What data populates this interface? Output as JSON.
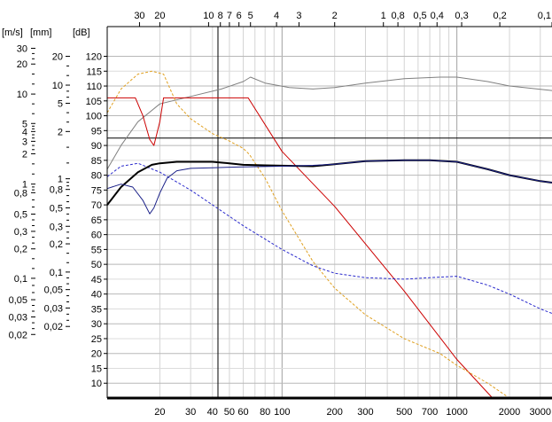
{
  "chart_data": {
    "type": "line",
    "title": "",
    "units": {
      "velocity": "[m/s]",
      "excursion": "[mm]",
      "level": "[dB]"
    },
    "x_scale": "log",
    "xlim": [
      10,
      3500
    ],
    "ylim": [
      5,
      130
    ],
    "grid": true,
    "legend": "none",
    "x_ticks": [
      20,
      30,
      40,
      50,
      60,
      80,
      100,
      200,
      300,
      500,
      700,
      1000,
      2000,
      3000
    ],
    "x_tick_labels": [
      "20",
      "30",
      "40",
      "50",
      "60",
      "80",
      "100",
      "200",
      "300",
      "500",
      "700",
      "1000",
      "2000",
      "3000"
    ],
    "top_ticks": [
      {
        "x": 15.3,
        "label": "30"
      },
      {
        "x": 20.0,
        "label": "20"
      },
      {
        "x": 38.0,
        "label": "10"
      },
      {
        "x": 44.4,
        "label": "8"
      },
      {
        "x": 50.0,
        "label": "7"
      },
      {
        "x": 56.7,
        "label": "6"
      },
      {
        "x": 66.0,
        "label": "5"
      },
      {
        "x": 93.0,
        "label": "4"
      },
      {
        "x": 125.0,
        "label": "3"
      },
      {
        "x": 200.0,
        "label": "2"
      },
      {
        "x": 380.0,
        "label": "1"
      },
      {
        "x": 460.0,
        "label": "0,8"
      },
      {
        "x": 615.0,
        "label": "0,5"
      },
      {
        "x": 770.0,
        "label": "0,4"
      },
      {
        "x": 1065.0,
        "label": "0,3"
      },
      {
        "x": 1760.0,
        "label": "0,2"
      },
      {
        "x": 3500.0,
        "label": "0,1"
      }
    ],
    "db_ticks": [
      10,
      15,
      20,
      25,
      30,
      35,
      40,
      45,
      50,
      55,
      60,
      65,
      70,
      75,
      80,
      85,
      90,
      95,
      100,
      105,
      110,
      115,
      120
    ],
    "mm_ticks": [
      {
        "y": 120.0,
        "label": "20"
      },
      {
        "y": 110.3,
        "label": "10"
      },
      {
        "y": 104.2,
        "label": "5"
      },
      {
        "y": 94.7,
        "label": "2"
      },
      {
        "y": 78.8,
        "label": "1"
      },
      {
        "y": 75.2,
        "label": "0,8"
      },
      {
        "y": 69.0,
        "label": "0,5"
      },
      {
        "y": 62.8,
        "label": "0,3"
      },
      {
        "y": 56.9,
        "label": "0,2"
      },
      {
        "y": 47.4,
        "label": "0,1"
      },
      {
        "y": 41.5,
        "label": "0,05"
      },
      {
        "y": 35.3,
        "label": "0,03"
      },
      {
        "y": 29.1,
        "label": "0,02"
      }
    ],
    "ms_ticks": [
      {
        "y": 122.7,
        "label": "30"
      },
      {
        "y": 117.4,
        "label": "20"
      },
      {
        "y": 107.3,
        "label": "10"
      },
      {
        "y": 97.4,
        "label": "5"
      },
      {
        "y": 94.7,
        "label": "4"
      },
      {
        "y": 91.4,
        "label": "3"
      },
      {
        "y": 87.2,
        "label": "2"
      },
      {
        "y": 77.0,
        "label": "1"
      },
      {
        "y": 74.1,
        "label": "0,8"
      },
      {
        "y": 66.9,
        "label": "0,5"
      },
      {
        "y": 61.1,
        "label": "0,3"
      },
      {
        "y": 55.2,
        "label": "0,2"
      },
      {
        "y": 45.3,
        "label": "0,1"
      },
      {
        "y": 38.1,
        "label": "0,05"
      },
      {
        "y": 32.3,
        "label": "0,03"
      },
      {
        "y": 26.4,
        "label": "0,02"
      }
    ],
    "reference_lines": {
      "x": 43,
      "y": 92.5
    },
    "series": [
      {
        "color": "#808080",
        "style": "solid",
        "width": 1,
        "x": [
          10,
          12,
          15,
          20,
          30,
          45,
          60,
          66,
          80,
          110,
          150,
          200,
          300,
          500,
          800,
          1000,
          1500,
          2000,
          3500
        ],
        "y": [
          82,
          90,
          98,
          104,
          106.5,
          109,
          111.5,
          113,
          111,
          109.5,
          109,
          109.5,
          111,
          112.5,
          113,
          113,
          111.5,
          110,
          108.5
        ]
      },
      {
        "color": "#cc0000",
        "style": "solid",
        "width": 1,
        "x": [
          10,
          14.5,
          16,
          17.5,
          18.5,
          20,
          21,
          24,
          30,
          40,
          50,
          60,
          64,
          100,
          200,
          500,
          1000,
          1600,
          3500
        ],
        "y": [
          106,
          106,
          100,
          92,
          90,
          98,
          106,
          106,
          106,
          106,
          106,
          106,
          106,
          88,
          69.5,
          41,
          18,
          5,
          5
        ]
      },
      {
        "color": "#e0a020",
        "style": "dashed",
        "width": 1,
        "x": [
          10,
          12,
          15,
          18,
          21,
          25,
          30,
          40,
          50,
          60,
          65,
          80,
          100,
          150,
          200,
          300,
          500,
          800,
          1000,
          1500,
          2000
        ],
        "y": [
          101,
          109,
          114,
          115,
          114,
          104,
          99,
          94,
          91.5,
          89,
          87,
          79,
          68,
          51,
          42,
          33,
          25,
          20,
          16,
          10,
          5
        ]
      },
      {
        "color": "#2a2acc",
        "style": "dashed",
        "width": 1,
        "x": [
          10,
          12,
          15,
          20,
          30,
          40,
          60,
          100,
          150,
          200,
          300,
          500,
          700,
          1000,
          1500,
          2000,
          3000,
          3500
        ],
        "y": [
          79.5,
          83,
          84,
          81,
          75,
          70,
          63,
          55,
          49.5,
          47,
          45.5,
          45,
          45.5,
          46,
          43,
          40,
          35,
          33.5
        ]
      },
      {
        "color": "#000000",
        "style": "solid",
        "width": 2,
        "x": [
          10,
          12,
          15,
          18,
          20,
          25,
          30,
          40,
          50,
          60,
          80,
          100,
          150,
          200,
          300,
          500,
          700,
          1000,
          1500,
          2000,
          3000,
          3500
        ],
        "y": [
          70,
          76,
          81,
          83.5,
          84,
          84.5,
          84.5,
          84.5,
          84,
          83.5,
          83.3,
          83.2,
          83,
          83.7,
          84.7,
          85,
          85,
          84.5,
          82,
          80,
          78,
          77.5
        ]
      },
      {
        "color": "#1a2088",
        "style": "solid",
        "width": 1,
        "x": [
          10,
          12,
          14,
          16,
          17.5,
          18.5,
          20,
          22,
          25,
          30,
          40,
          60,
          100,
          150,
          200,
          300,
          500,
          700,
          1000,
          1500,
          2000,
          3000,
          3500
        ],
        "y": [
          75.5,
          77,
          76,
          71.5,
          67,
          69,
          74,
          79,
          81.5,
          82.3,
          82.5,
          82.8,
          83,
          83.3,
          83.7,
          84.7,
          85,
          85,
          84.5,
          82,
          80,
          78,
          77.5
        ]
      }
    ]
  }
}
